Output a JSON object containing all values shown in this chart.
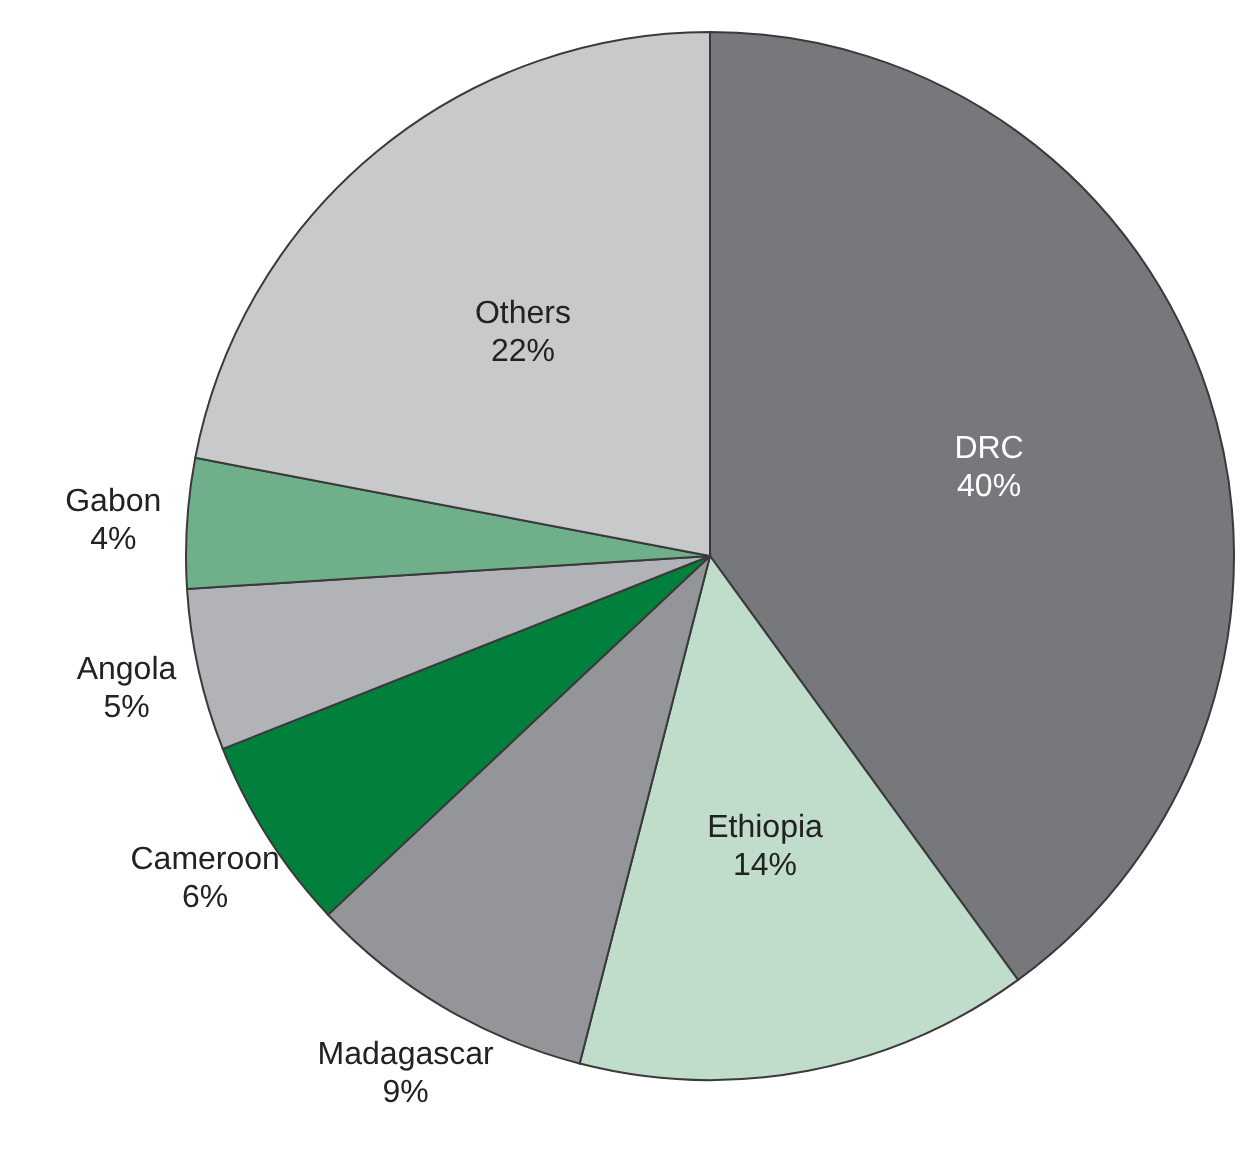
{
  "chart_data": {
    "type": "pie",
    "categories": [
      "DRC",
      "Ethiopia",
      "Madagascar",
      "Cameroon",
      "Angola",
      "Gabon",
      "Others"
    ],
    "values": [
      40,
      14,
      9,
      6,
      5,
      4,
      22
    ],
    "value_labels": [
      "40%",
      "14%",
      "9%",
      "6%",
      "5%",
      "4%",
      "22%"
    ],
    "colors": [
      "#77787b",
      "#c0dccb",
      "#939598",
      "#00803c",
      "#b1b3b6",
      "#6fb08a",
      "#c8c9cb"
    ]
  }
}
